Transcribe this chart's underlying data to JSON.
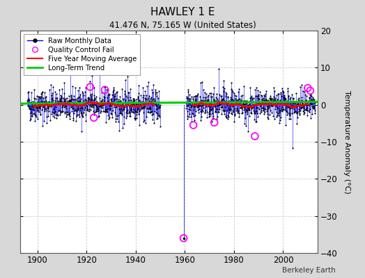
{
  "title": "HAWLEY 1 E",
  "subtitle": "41.476 N, 75.165 W (United States)",
  "ylabel": "Temperature Anomaly (°C)",
  "attribution": "Berkeley Earth",
  "xlim": [
    1893,
    2014
  ],
  "ylim": [
    -40,
    20
  ],
  "yticks": [
    -40,
    -30,
    -20,
    -10,
    0,
    10,
    20
  ],
  "xticks": [
    1900,
    1920,
    1940,
    1960,
    1980,
    2000
  ],
  "fig_bg_color": "#d8d8d8",
  "plot_bg_color": "#ffffff",
  "raw_line_color": "#0000ff",
  "raw_dot_color": "#000000",
  "ma_color": "#ff0000",
  "trend_color": "#00cc00",
  "qc_color": "#ff00ff",
  "grid_color": "#cccccc",
  "outlier_x": 1959.5,
  "outlier_y": -36.0,
  "seed": 42
}
